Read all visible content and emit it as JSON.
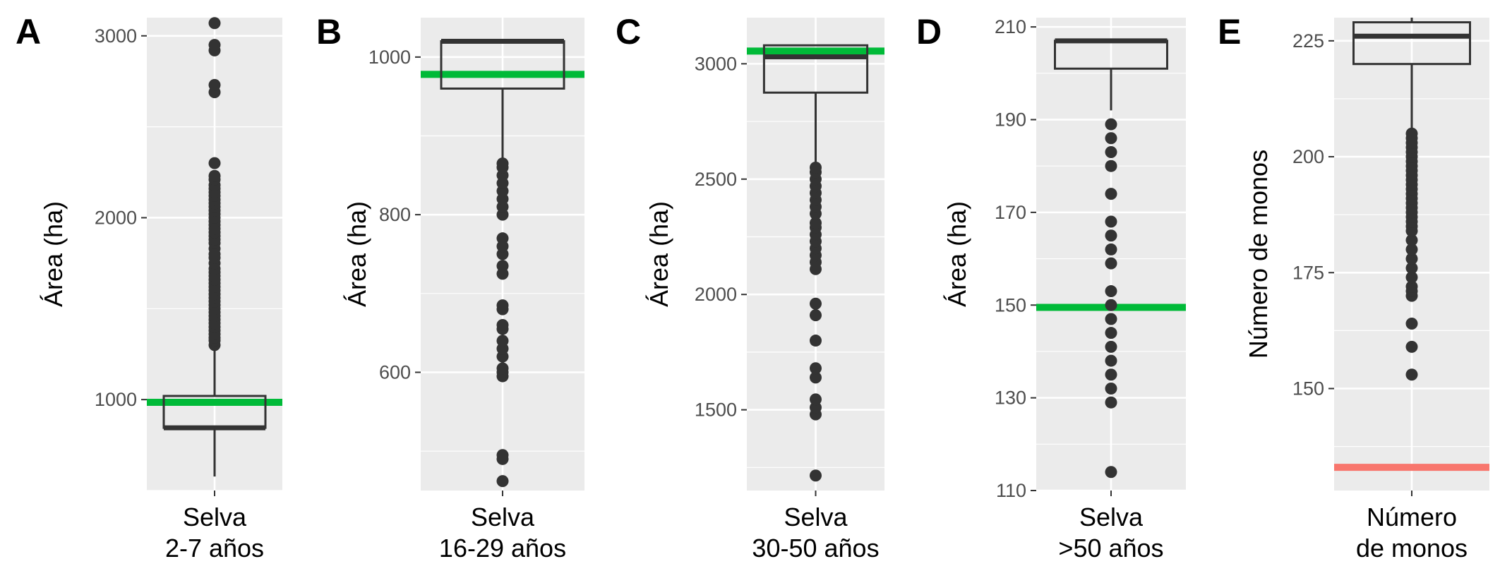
{
  "chart_data": [
    {
      "type": "boxplot",
      "panel_label": "A",
      "ylabel": "Área (ha)",
      "category_label": [
        "Selva",
        "2-7 años"
      ],
      "ylim": [
        500,
        3100
      ],
      "yticks": [
        1000,
        2000,
        3000
      ],
      "box": {
        "whisker_low": 577,
        "q1": 845,
        "median": 845,
        "q3": 1020,
        "whisker_high": 1270
      },
      "reference_line": {
        "value": 985,
        "color": "#00BA38"
      },
      "outliers": [
        1300,
        1325,
        1340,
        1360,
        1380,
        1400,
        1420,
        1440,
        1460,
        1480,
        1500,
        1520,
        1540,
        1560,
        1580,
        1600,
        1620,
        1640,
        1660,
        1680,
        1700,
        1720,
        1750,
        1780,
        1800,
        1830,
        1860,
        1880,
        1900,
        1920,
        1940,
        1960,
        1980,
        2000,
        2020,
        2040,
        2060,
        2080,
        2100,
        2120,
        2140,
        2160,
        2180,
        2210,
        2230,
        2300,
        2690,
        2730,
        2920,
        2950,
        3070
      ]
    },
    {
      "type": "boxplot",
      "panel_label": "B",
      "ylabel": "Área (ha)",
      "category_label": [
        "Selva",
        "16-29 años"
      ],
      "ylim": [
        450,
        1050
      ],
      "yticks": [
        600,
        800,
        1000
      ],
      "box": {
        "whisker_low": 870,
        "q1": 960,
        "median": 1020,
        "q3": 1020,
        "whisker_high": 1020
      },
      "reference_line": {
        "value": 978,
        "color": "#00BA38"
      },
      "outliers": [
        462,
        490,
        495,
        595,
        600,
        605,
        620,
        630,
        640,
        655,
        660,
        680,
        685,
        725,
        735,
        750,
        760,
        770,
        800,
        810,
        820,
        830,
        840,
        850,
        860,
        865
      ]
    },
    {
      "type": "boxplot",
      "panel_label": "C",
      "ylabel": "Área (ha)",
      "category_label": [
        "Selva",
        "30-50 años"
      ],
      "ylim": [
        1150,
        3200
      ],
      "yticks": [
        1500,
        2000,
        2500,
        3000
      ],
      "box": {
        "whisker_low": 2575,
        "q1": 2875,
        "median": 3030,
        "q3": 3080,
        "whisker_high": 3080
      },
      "reference_line": {
        "value": 3055,
        "color": "#00BA38"
      },
      "outliers": [
        1215,
        1480,
        1510,
        1545,
        1640,
        1680,
        1800,
        1910,
        1960,
        2110,
        2140,
        2170,
        2200,
        2230,
        2260,
        2290,
        2310,
        2350,
        2380,
        2410,
        2440,
        2470,
        2500,
        2530,
        2550
      ]
    },
    {
      "type": "boxplot",
      "panel_label": "D",
      "ylabel": "Área (ha)",
      "category_label": [
        "Selva",
        ">50 años"
      ],
      "ylim": [
        110,
        212
      ],
      "yticks": [
        110,
        130,
        150,
        170,
        190,
        210
      ],
      "box": {
        "whisker_low": 192,
        "q1": 201,
        "median": 207,
        "q3": 207,
        "whisker_high": 207
      },
      "reference_line": {
        "value": 149.5,
        "color": "#00BA38"
      },
      "outliers": [
        114,
        129,
        132,
        135,
        138,
        141,
        144,
        147,
        150,
        153,
        159,
        162,
        165,
        168,
        174,
        180,
        183,
        186,
        189
      ]
    },
    {
      "type": "boxplot",
      "panel_label": "E",
      "ylabel": "Número de monos",
      "category_label": [
        "Número",
        "de monos"
      ],
      "ylim": [
        128,
        230
      ],
      "yticks": [
        150,
        175,
        200,
        225
      ],
      "box": {
        "whisker_low": 206,
        "q1": 220,
        "median": 226,
        "q3": 229,
        "whisker_high": 230
      },
      "reference_line": {
        "value": 133,
        "color": "#F8766D"
      },
      "outliers": [
        153,
        159,
        164,
        170,
        171,
        172,
        174,
        176,
        178,
        180,
        182,
        184,
        185,
        186,
        187,
        188,
        189,
        190,
        191,
        192,
        193,
        194,
        195,
        196,
        197,
        198,
        199,
        200,
        201,
        202,
        203,
        204,
        205
      ]
    }
  ]
}
